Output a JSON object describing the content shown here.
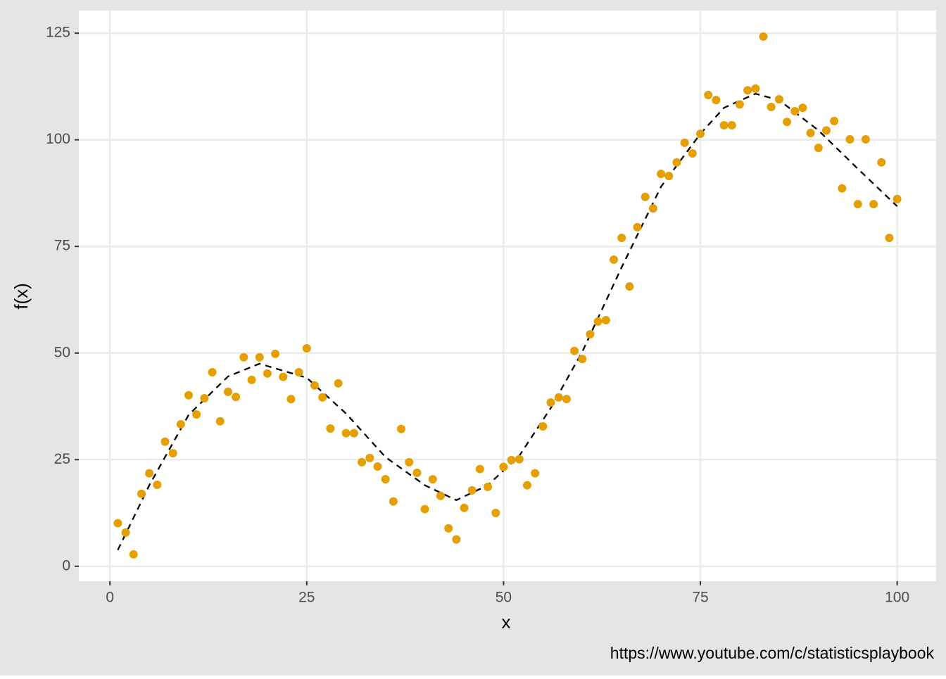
{
  "chart_data": {
    "type": "scatter",
    "x_label": "x",
    "y_label": "f(x)",
    "caption": "https://www.youtube.com/c/statisticsplaybook",
    "xlim": [
      -3.95,
      104.95
    ],
    "ylim": [
      -3.5,
      130.3
    ],
    "xticks": [
      0,
      25,
      50,
      75,
      100
    ],
    "yticks": [
      0,
      25,
      50,
      75,
      100,
      125
    ],
    "grid": true,
    "points": {
      "color": "#e69f00",
      "x": [
        1,
        2,
        3,
        4,
        5,
        6,
        7,
        8,
        9,
        10,
        11,
        12,
        13,
        14,
        15,
        16,
        17,
        18,
        19,
        20,
        21,
        22,
        23,
        24,
        25,
        26,
        27,
        28,
        29,
        30,
        31,
        32,
        33,
        34,
        35,
        36,
        37,
        38,
        39,
        40,
        41,
        42,
        43,
        44,
        45,
        46,
        47,
        48,
        49,
        50,
        51,
        52,
        53,
        54,
        55,
        56,
        57,
        58,
        59,
        60,
        61,
        62,
        63,
        64,
        65,
        66,
        67,
        68,
        69,
        70,
        71,
        72,
        73,
        74,
        75,
        76,
        77,
        78,
        79,
        80,
        81,
        82,
        83,
        84,
        85,
        86,
        87,
        88,
        89,
        90,
        91,
        92,
        93,
        94,
        95,
        96,
        97,
        98,
        99,
        100
      ],
      "values": [
        10.1,
        7.9,
        2.8,
        17.0,
        21.8,
        19.1,
        29.2,
        26.5,
        33.3,
        40.1,
        35.6,
        39.4,
        45.5,
        34.0,
        40.9,
        39.7,
        49.0,
        43.7,
        49.0,
        45.2,
        49.8,
        44.4,
        39.2,
        45.5,
        51.1,
        42.4,
        39.6,
        32.3,
        42.9,
        31.2,
        31.2,
        24.4,
        25.4,
        23.4,
        20.4,
        15.2,
        32.2,
        24.4,
        21.9,
        13.4,
        20.4,
        16.5,
        8.9,
        6.3,
        13.7,
        17.8,
        22.8,
        18.6,
        12.5,
        23.3,
        24.9,
        25.1,
        19.0,
        21.8,
        32.8,
        38.4,
        39.6,
        39.2,
        50.5,
        48.6,
        54.4,
        57.4,
        57.7,
        71.9,
        77.0,
        65.6,
        79.5,
        86.6,
        83.9,
        92.0,
        91.5,
        94.7,
        99.3,
        96.8,
        101.4,
        110.5,
        109.3,
        103.4,
        103.4,
        108.3,
        111.6,
        112.0,
        124.2,
        107.7,
        109.5,
        104.2,
        106.7,
        107.5,
        101.6,
        98.1,
        102.2,
        104.4,
        88.6,
        100.1,
        84.9,
        100.1,
        84.9,
        94.7,
        77.0,
        86.1
      ]
    },
    "curve": {
      "color": "#000000",
      "dashed": true,
      "x": [
        1,
        5,
        10,
        15,
        19,
        25,
        30,
        35,
        40,
        44,
        48,
        52,
        56,
        60,
        65,
        70,
        75,
        78,
        82,
        85,
        90,
        95,
        100
      ],
      "values": [
        3.8,
        19.0,
        35.5,
        44.5,
        47.5,
        44.2,
        35.8,
        25.6,
        19.0,
        15.5,
        19.0,
        25.9,
        37.1,
        50.3,
        70.1,
        89.0,
        101.4,
        107.5,
        110.8,
        109.3,
        102.2,
        93.2,
        84.4
      ]
    }
  }
}
